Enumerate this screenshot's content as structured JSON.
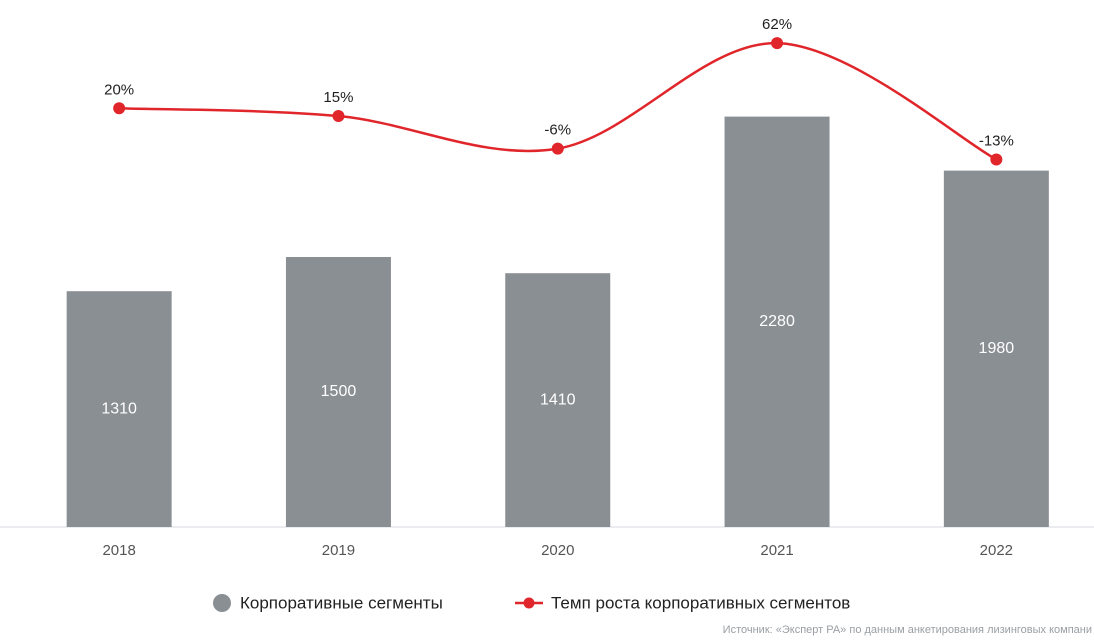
{
  "chart_data": {
    "type": "bar",
    "categories": [
      "2018",
      "2019",
      "2020",
      "2021",
      "2022"
    ],
    "ylim": [
      0,
      2800
    ],
    "y2lim": [
      -250,
      75
    ],
    "series": [
      {
        "name": "Корпоративные сегменты",
        "type": "bar",
        "color": "#8a8f94",
        "values": [
          1310,
          1500,
          1410,
          2280,
          1980
        ]
      },
      {
        "name": "Темп роста корпоративных сегментов",
        "type": "line",
        "axis": "y2",
        "color": "#e0262b",
        "values": [
          20,
          15,
          -6,
          62,
          -13
        ],
        "value_labels": [
          "20%",
          "15%",
          "-6%",
          "62%",
          "-13%"
        ]
      }
    ],
    "source": "Источник: «Эксперт РА» по данным анкетирования лизинговых компани"
  }
}
